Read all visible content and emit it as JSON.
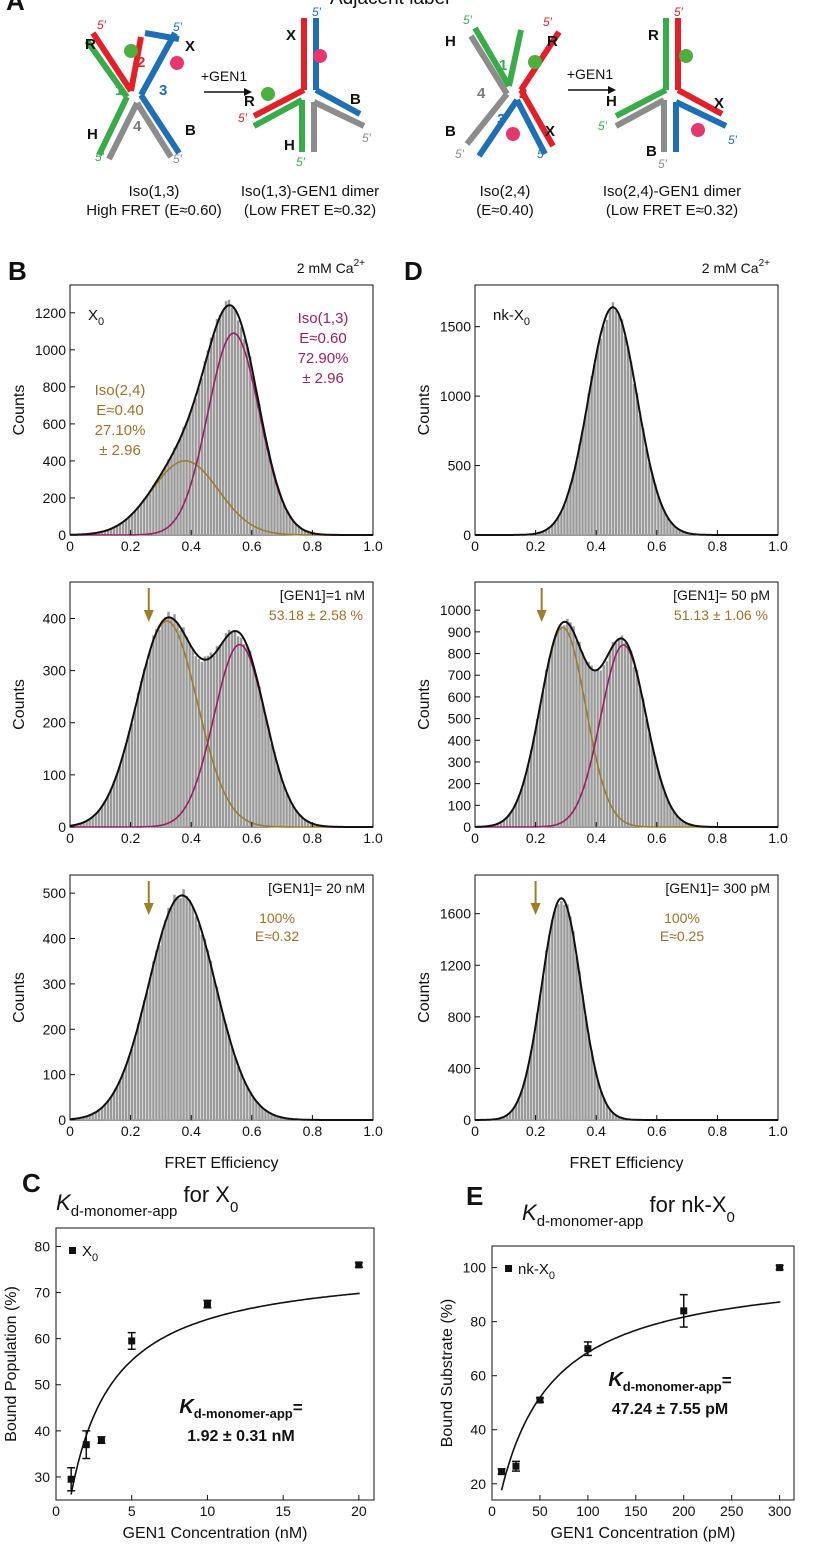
{
  "top_label": "Adjacent label",
  "panel_letters": {
    "A": "A",
    "B": "B",
    "C": "C",
    "D": "D",
    "E": "E"
  },
  "schematic": {
    "gen1_arrow_label": "+GEN1",
    "iso13": {
      "caption1": "Iso(1,3)",
      "caption2": "High FRET (E≈0.60)"
    },
    "iso13_dimer": {
      "caption1": "Iso(1,3)-GEN1 dimer",
      "caption2": "(Low FRET E≈0.32)"
    },
    "iso24": {
      "caption1": "Iso(2,4)",
      "caption2": "(E≈0.40)"
    },
    "iso24_dimer": {
      "caption1": "Iso(2,4)-GEN1 dimer",
      "caption2": "(Low FRET E≈0.32)"
    },
    "arm_labels": [
      "R",
      "X",
      "H",
      "B"
    ],
    "strand_numbers": [
      "1",
      "2",
      "3",
      "4"
    ],
    "five_prime": "5′",
    "colors": {
      "strand1": "#3aab49",
      "strand2": "#e3202a",
      "strand3": "#1f6fb5",
      "strand4": "#8c8c8c",
      "donor": "#4caf3f",
      "acceptor": "#e6386f"
    }
  },
  "colors": {
    "hist": "#9a9a9a",
    "fit": "#111111",
    "gold": "#9b7d2b",
    "magenta": "#9b2160",
    "gold_text": "#a0702a"
  },
  "chart_data": [
    {
      "id": "B1",
      "type": "histogram",
      "x": [
        0.05,
        0.1,
        0.15,
        0.2,
        0.25,
        0.3,
        0.35,
        0.4,
        0.45,
        0.5,
        0.55,
        0.6,
        0.65,
        0.7,
        0.75,
        0.8,
        0.85,
        0.9
      ],
      "y": [
        20,
        60,
        130,
        220,
        330,
        460,
        610,
        800,
        1000,
        1180,
        1255,
        1110,
        800,
        450,
        210,
        80,
        25,
        5
      ],
      "xlim": [
        0,
        1.0
      ],
      "ylim": [
        0,
        1350
      ],
      "xticks": [
        "0",
        "0.2",
        "0.4",
        "0.6",
        "0.8",
        "1.0"
      ],
      "yticks": [
        0,
        200,
        400,
        600,
        800,
        1000,
        1200
      ],
      "ylabel": "Counts",
      "xlabel": "",
      "header": "2 mM Ca",
      "header_sup": "2+",
      "sample_label": "X",
      "sample_sub": "0",
      "components": [
        {
          "name": "Iso(2,4)",
          "color": "gold",
          "mu": 0.38,
          "sigma": 0.11,
          "amp": 400,
          "label_lines": [
            "Iso(2,4)",
            "E≈0.40",
            "27.10%",
            "± 2.96"
          ]
        },
        {
          "name": "Iso(1,3)",
          "color": "magenta",
          "mu": 0.54,
          "sigma": 0.085,
          "amp": 1090,
          "label_lines": [
            "Iso(1,3)",
            "E≈0.60",
            "72.90%",
            "± 2.96"
          ]
        }
      ]
    },
    {
      "id": "B2",
      "type": "histogram",
      "x": [
        0.05,
        0.1,
        0.15,
        0.2,
        0.25,
        0.3,
        0.35,
        0.4,
        0.45,
        0.5,
        0.55,
        0.6,
        0.65,
        0.7,
        0.75,
        0.8,
        0.85,
        0.9
      ],
      "y": [
        15,
        55,
        130,
        230,
        340,
        410,
        400,
        380,
        395,
        410,
        385,
        320,
        220,
        120,
        60,
        25,
        10,
        5
      ],
      "xlim": [
        0,
        1.0
      ],
      "ylim": [
        0,
        470
      ],
      "xticks": [
        "0",
        "0.2",
        "0.4",
        "0.6",
        "0.8",
        "1.0"
      ],
      "yticks": [
        0,
        100,
        200,
        300,
        400
      ],
      "ylabel": "Counts",
      "xlabel": "",
      "header": "[GEN1]=1 nM",
      "pct": "53.18 ± 2.58 %",
      "arrow_x": 0.26,
      "components": [
        {
          "name": "Low FRET",
          "color": "gold",
          "mu": 0.32,
          "sigma": 0.1,
          "amp": 395
        },
        {
          "name": "High FRET",
          "color": "magenta",
          "mu": 0.56,
          "sigma": 0.085,
          "amp": 350
        }
      ]
    },
    {
      "id": "B3",
      "type": "histogram",
      "x": [
        0.05,
        0.1,
        0.15,
        0.2,
        0.25,
        0.3,
        0.35,
        0.4,
        0.45,
        0.5,
        0.55,
        0.6,
        0.65,
        0.7,
        0.75,
        0.8,
        0.85
      ],
      "y": [
        15,
        45,
        110,
        210,
        330,
        440,
        495,
        470,
        380,
        260,
        150,
        70,
        35,
        20,
        10,
        5,
        3
      ],
      "xlim": [
        0,
        1.0
      ],
      "ylim": [
        0,
        540
      ],
      "xticks": [
        "0",
        "0.2",
        "0.4",
        "0.6",
        "0.8",
        "1.0"
      ],
      "yticks": [
        0,
        100,
        200,
        300,
        400,
        500
      ],
      "ylabel": "Counts",
      "xlabel": "FRET Efficiency",
      "header": "[GEN1]= 20 nM",
      "arrow_x": 0.26,
      "note_lines": [
        "100%",
        "E≈0.32"
      ],
      "components": [
        {
          "name": "single",
          "color": "fit",
          "mu": 0.37,
          "sigma": 0.11,
          "amp": 495
        }
      ]
    },
    {
      "id": "D1",
      "type": "histogram",
      "x": [
        0.15,
        0.2,
        0.25,
        0.3,
        0.35,
        0.4,
        0.45,
        0.5,
        0.55,
        0.6,
        0.65,
        0.7,
        0.75
      ],
      "y": [
        20,
        80,
        230,
        520,
        950,
        1400,
        1640,
        1400,
        950,
        460,
        170,
        50,
        15
      ],
      "xlim": [
        0,
        1.0
      ],
      "ylim": [
        0,
        1800
      ],
      "xticks": [
        "0",
        "0.2",
        "0.4",
        "0.6",
        "0.8",
        "1.0"
      ],
      "yticks": [
        0,
        500,
        1000,
        1500
      ],
      "ylabel": "Counts",
      "xlabel": "",
      "header": "2 mM Ca",
      "header_sup": "2+",
      "sample_label": "nk-X",
      "sample_sub": "0",
      "components": [
        {
          "name": "single",
          "color": "fit",
          "mu": 0.455,
          "sigma": 0.08,
          "amp": 1640
        }
      ]
    },
    {
      "id": "D2",
      "type": "histogram",
      "x": [
        0.1,
        0.15,
        0.2,
        0.25,
        0.3,
        0.35,
        0.4,
        0.45,
        0.5,
        0.55,
        0.6,
        0.65,
        0.7,
        0.75
      ],
      "y": [
        20,
        90,
        300,
        700,
        1000,
        1030,
        990,
        980,
        910,
        670,
        350,
        130,
        40,
        10
      ],
      "xlim": [
        0,
        1.0
      ],
      "ylim": [
        0,
        1130
      ],
      "xticks": [
        "0",
        "0.2",
        "0.4",
        "0.6",
        "0.8",
        "1.0"
      ],
      "yticks": [
        0,
        100,
        200,
        300,
        400,
        500,
        600,
        700,
        800,
        900,
        1000
      ],
      "ylabel": "Counts",
      "xlabel": "",
      "header": "[GEN1]= 50 pM",
      "pct": "51.13 ± 1.06 %",
      "arrow_x": 0.22,
      "components": [
        {
          "name": "Low FRET",
          "color": "gold",
          "mu": 0.29,
          "sigma": 0.075,
          "amp": 920
        },
        {
          "name": "High FRET",
          "color": "magenta",
          "mu": 0.49,
          "sigma": 0.075,
          "amp": 840
        }
      ]
    },
    {
      "id": "D3",
      "type": "histogram",
      "x": [
        0.1,
        0.15,
        0.2,
        0.25,
        0.3,
        0.35,
        0.4,
        0.45,
        0.5,
        0.55,
        0.6,
        0.65
      ],
      "y": [
        40,
        250,
        800,
        1500,
        1720,
        1450,
        800,
        300,
        90,
        25,
        8,
        3
      ],
      "xlim": [
        0,
        1.0
      ],
      "ylim": [
        0,
        1900
      ],
      "xticks": [
        "0",
        "0.2",
        "0.4",
        "0.6",
        "0.8",
        "1.0"
      ],
      "yticks": [
        0,
        400,
        800,
        1200,
        1600
      ],
      "ylabel": "Counts",
      "xlabel": "FRET Efficiency",
      "header": "[GEN1]= 300 pM",
      "arrow_x": 0.2,
      "note_lines": [
        "100%",
        "E≈0.25"
      ],
      "components": [
        {
          "name": "single",
          "color": "fit",
          "mu": 0.285,
          "sigma": 0.065,
          "amp": 1720
        }
      ]
    },
    {
      "id": "C",
      "type": "scatter",
      "title_K": "K",
      "title_sub": "d-monomer-app",
      "title_rest": "for X",
      "title_rest_sub": "0",
      "xlabel": "GEN1 Concentration (nM)",
      "ylabel": "Bound Population (%)",
      "xlim": [
        0,
        21
      ],
      "ylim": [
        25,
        84
      ],
      "xticks": [
        0,
        5,
        10,
        15,
        20
      ],
      "yticks": [
        30,
        40,
        50,
        60,
        70,
        80
      ],
      "legend": "X",
      "legend_sub": "0",
      "points": [
        {
          "x": 1,
          "y": 29.5,
          "err": 2.5
        },
        {
          "x": 2,
          "y": 37,
          "err": 3
        },
        {
          "x": 3,
          "y": 38,
          "err": 0.7
        },
        {
          "x": 5,
          "y": 59.5,
          "err": 1.8
        },
        {
          "x": 10,
          "y": 67.5,
          "err": 0.8
        },
        {
          "x": 20,
          "y": 76,
          "err": 0.5
        }
      ],
      "fit": {
        "ymax": 76.5,
        "kd": 1.92,
        "x0": 1
      },
      "kd_label_K": "K",
      "kd_label_sub": "d-monomer-app",
      "kd_label_eq": "=",
      "kd_value": "1.92 ± 0.31 nM"
    },
    {
      "id": "E",
      "type": "scatter",
      "title_K": "K",
      "title_sub": "d-monomer-app",
      "title_rest": "for nk-X",
      "title_rest_sub": "0",
      "xlabel": "GEN1 Concentration (pM)",
      "ylabel": "Bound Substrate (%)",
      "xlim": [
        0,
        315
      ],
      "ylim": [
        14,
        108
      ],
      "xticks": [
        0,
        50,
        100,
        150,
        200,
        250,
        300
      ],
      "yticks": [
        20,
        40,
        60,
        80,
        100
      ],
      "legend": "nk-X",
      "legend_sub": "0",
      "points": [
        {
          "x": 10,
          "y": 24.5,
          "err": 1
        },
        {
          "x": 25,
          "y": 26.5,
          "err": 1.8
        },
        {
          "x": 50,
          "y": 51,
          "err": 0.8
        },
        {
          "x": 100,
          "y": 70,
          "err": 2.5
        },
        {
          "x": 200,
          "y": 84,
          "err": 6
        },
        {
          "x": 300,
          "y": 100,
          "err": 0.8
        }
      ],
      "fit": {
        "ymax": 101,
        "kd": 47.24,
        "x0": 10
      },
      "kd_label_K": "K",
      "kd_label_sub": "d-monomer-app",
      "kd_label_eq": "=",
      "kd_value": "47.24 ± 7.55 pM"
    }
  ]
}
